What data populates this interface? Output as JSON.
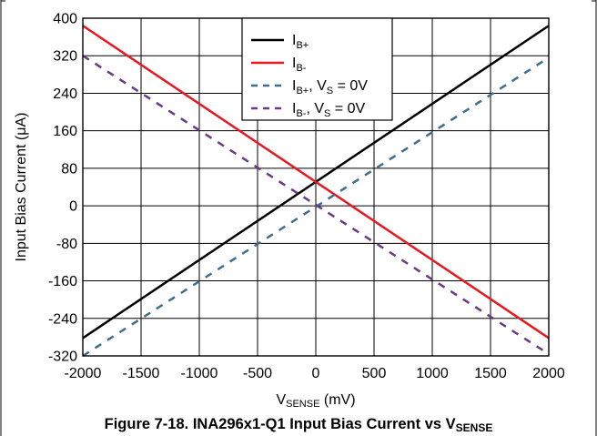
{
  "chart_data": {
    "type": "line",
    "title": "Figure 7-18. INA296x1-Q1 Input Bias Current vs V",
    "title_sub": "SENSE",
    "xlabel": "V",
    "xlabel_sub": "SENSE",
    "xlabel_unit": " (mV)",
    "ylabel": "Input Bias Current (μA)",
    "xlim": [
      -2000,
      2000
    ],
    "ylim": [
      -320,
      400
    ],
    "x_ticks": [
      -2000,
      -1500,
      -1000,
      -500,
      0,
      500,
      1000,
      1500,
      2000
    ],
    "y_ticks": [
      400,
      320,
      240,
      160,
      80,
      0,
      -80,
      -160,
      -240,
      -320
    ],
    "grid": true,
    "legend_position": "top-right",
    "series": [
      {
        "name": "IB+",
        "label_main": "I",
        "label_sub": "B+",
        "label_suffix": "",
        "label_suffix_sub": "",
        "label_tail": "",
        "color": "#000000",
        "dash": "solid",
        "x": [
          -2000,
          2000
        ],
        "y": [
          -282,
          384
        ]
      },
      {
        "name": "IB-",
        "label_main": "I",
        "label_sub": "B-",
        "label_suffix": "",
        "label_suffix_sub": "",
        "label_tail": "",
        "color": "#e8181d",
        "dash": "solid",
        "x": [
          -2000,
          2000
        ],
        "y": [
          384,
          -282
        ]
      },
      {
        "name": "IB+, VS = 0V",
        "label_main": "I",
        "label_sub": "B+",
        "label_suffix": ", V",
        "label_suffix_sub": "S",
        "label_tail": " = 0V",
        "color": "#3f6e8c",
        "dash": "dashed",
        "x": [
          -2000,
          2000
        ],
        "y": [
          -320,
          316
        ]
      },
      {
        "name": "IB-, VS = 0V",
        "label_main": "I",
        "label_sub": "B-",
        "label_suffix": ", V",
        "label_suffix_sub": "S",
        "label_tail": " = 0V",
        "color": "#6b3a86",
        "dash": "dashed",
        "x": [
          -2000,
          2000
        ],
        "y": [
          320,
          -316
        ]
      }
    ]
  }
}
